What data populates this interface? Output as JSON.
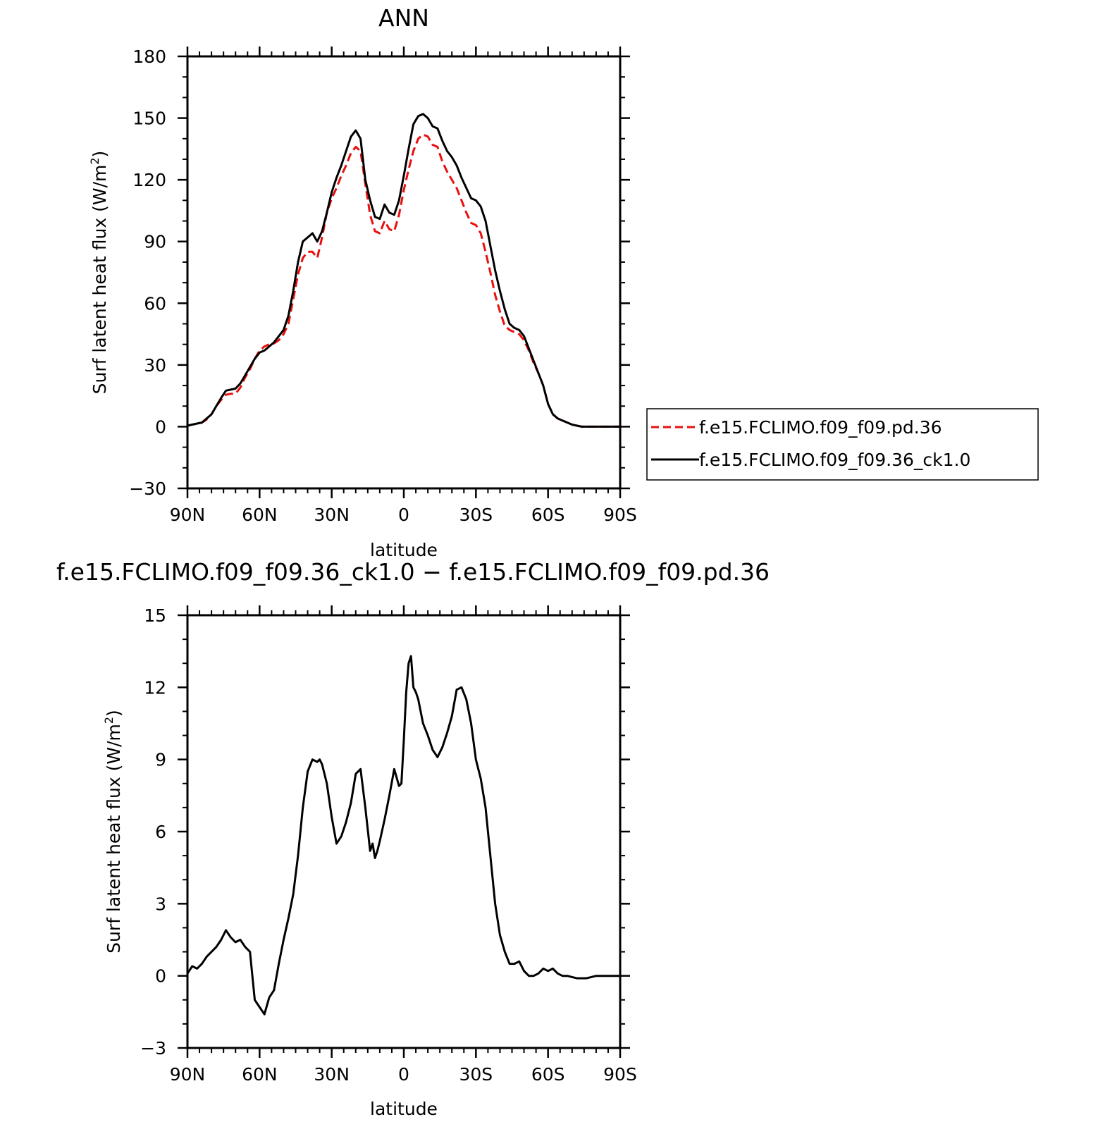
{
  "chart_data": [
    {
      "type": "line",
      "title": "ANN",
      "xlabel": "latitude",
      "ylabel": "Surf latent heat flux (W/m2)",
      "ylabel_parts": {
        "main": "Surf latent heat flux (W/m",
        "sup": "2",
        "end": ")"
      },
      "xlim": [
        90,
        -90
      ],
      "ylim": [
        -30,
        180
      ],
      "xticks": [
        {
          "value": 90,
          "label": "90N"
        },
        {
          "value": 60,
          "label": "60N"
        },
        {
          "value": 30,
          "label": "30N"
        },
        {
          "value": 0,
          "label": "0"
        },
        {
          "value": -30,
          "label": "30S"
        },
        {
          "value": -60,
          "label": "60S"
        },
        {
          "value": -90,
          "label": "90S"
        }
      ],
      "yticks": [
        {
          "value": -30,
          "label": "−30"
        },
        {
          "value": 0,
          "label": "0"
        },
        {
          "value": 30,
          "label": "30"
        },
        {
          "value": 60,
          "label": "60"
        },
        {
          "value": 90,
          "label": "90"
        },
        {
          "value": 120,
          "label": "120"
        },
        {
          "value": 150,
          "label": "150"
        },
        {
          "value": 180,
          "label": "180"
        }
      ],
      "legend_position": "right",
      "series": [
        {
          "name": "f.e15.FCLIMO.f09_f09.pd.36",
          "color": "#e8100e",
          "dash": "dashed",
          "x": [
            90,
            86,
            84,
            82,
            80,
            78,
            76,
            74,
            72,
            70,
            68,
            66,
            64,
            62,
            60,
            58,
            56,
            54,
            52,
            50,
            48,
            46,
            44,
            42,
            40,
            38,
            36,
            34,
            32,
            30,
            28,
            26,
            24,
            22,
            20,
            18,
            16,
            14,
            12,
            10,
            8,
            6,
            4,
            2,
            0,
            -2,
            -4,
            -6,
            -8,
            -10,
            -12,
            -14,
            -16,
            -18,
            -20,
            -22,
            -24,
            -26,
            -28,
            -30,
            -32,
            -34,
            -36,
            -38,
            -40,
            -42,
            -44,
            -46,
            -48,
            -50,
            -52,
            -54,
            -56,
            -58,
            -60,
            -62,
            -64,
            -66,
            -68,
            -70,
            -72,
            -74,
            -76,
            -78,
            -80,
            -82,
            -84,
            -86,
            -90
          ],
          "y": [
            0.5,
            1.5,
            2,
            3.5,
            6,
            10,
            13,
            15.5,
            16,
            16,
            19,
            24,
            28,
            33,
            37,
            39,
            40,
            40.5,
            42,
            45,
            50,
            62,
            74,
            82,
            85,
            85,
            82,
            92,
            104,
            111,
            116,
            122,
            127,
            133,
            136,
            134,
            118,
            103,
            95,
            94,
            100,
            96,
            95,
            103,
            115,
            125,
            134,
            140,
            142,
            141,
            137,
            136,
            129,
            124,
            120,
            116,
            110,
            104,
            99,
            98,
            94,
            85,
            75,
            64,
            56,
            49,
            47,
            46,
            45,
            42,
            37,
            31,
            26,
            20,
            11,
            6,
            4,
            3,
            2,
            1,
            0.5,
            0,
            0,
            0,
            0,
            0,
            0,
            0,
            0
          ]
        },
        {
          "name": "f.e15.FCLIMO.f09_f09.36_ck1.0",
          "color": "#000000",
          "dash": "solid",
          "x": [
            90,
            86,
            84,
            82,
            80,
            78,
            76,
            74,
            72,
            70,
            68,
            66,
            64,
            62,
            60,
            58,
            56,
            54,
            52,
            50,
            48,
            46,
            44,
            42,
            40,
            38,
            36,
            34,
            32,
            30,
            28,
            26,
            24,
            22,
            20,
            18,
            16,
            14,
            12,
            10,
            8,
            6,
            4,
            2,
            0,
            -2,
            -4,
            -6,
            -8,
            -10,
            -12,
            -14,
            -16,
            -18,
            -20,
            -22,
            -24,
            -26,
            -28,
            -30,
            -32,
            -34,
            -36,
            -38,
            -40,
            -42,
            -44,
            -46,
            -48,
            -50,
            -52,
            -54,
            -56,
            -58,
            -60,
            -62,
            -64,
            -66,
            -68,
            -70,
            -72,
            -74,
            -76,
            -78,
            -80,
            -82,
            -84,
            -86,
            -90
          ],
          "y": [
            0.5,
            1.5,
            2,
            4,
            6,
            10,
            14,
            17.5,
            18,
            18.5,
            21,
            25,
            29,
            33,
            36,
            37,
            39,
            41,
            44,
            47,
            54,
            66,
            80,
            90,
            92,
            94,
            90,
            95,
            104,
            114,
            121,
            127,
            134,
            141,
            144,
            140,
            120,
            110,
            102,
            101,
            108,
            104,
            103,
            110,
            122,
            135,
            147,
            151,
            152,
            150,
            146,
            145,
            139,
            134,
            131,
            127,
            121,
            116,
            111,
            110,
            107,
            100,
            88,
            76,
            66,
            57,
            50,
            48,
            47,
            44,
            38,
            32,
            26,
            20,
            11,
            6,
            4,
            3,
            2,
            1,
            0.5,
            0,
            0,
            0,
            0,
            0,
            0,
            0,
            0
          ]
        }
      ]
    },
    {
      "type": "line",
      "title": "f.e15.FCLIMO.f09_f09.36_ck1.0 − f.e15.FCLIMO.f09_f09.pd.36",
      "xlabel": "latitude",
      "ylabel": "Surf latent heat flux (W/m2)",
      "ylabel_parts": {
        "main": "Surf latent heat flux (W/m",
        "sup": "2",
        "end": ")"
      },
      "xlim": [
        90,
        -90
      ],
      "ylim": [
        -3,
        15
      ],
      "xticks": [
        {
          "value": 90,
          "label": "90N"
        },
        {
          "value": 60,
          "label": "60N"
        },
        {
          "value": 30,
          "label": "30N"
        },
        {
          "value": 0,
          "label": "0"
        },
        {
          "value": -30,
          "label": "30S"
        },
        {
          "value": -60,
          "label": "60S"
        },
        {
          "value": -90,
          "label": "90S"
        }
      ],
      "yticks": [
        {
          "value": -3,
          "label": "−3"
        },
        {
          "value": 0,
          "label": "0"
        },
        {
          "value": 3,
          "label": "3"
        },
        {
          "value": 6,
          "label": "6"
        },
        {
          "value": 9,
          "label": "9"
        },
        {
          "value": 12,
          "label": "12"
        },
        {
          "value": 15,
          "label": "15"
        }
      ],
      "series": [
        {
          "color": "#000000",
          "dash": "solid",
          "x": [
            90,
            88,
            86,
            84,
            82,
            80,
            78,
            76,
            74,
            72,
            70,
            68,
            66,
            64,
            62,
            60,
            58,
            56,
            54,
            52,
            50,
            48,
            46,
            44,
            42,
            40,
            38,
            36,
            35,
            34,
            32,
            30,
            28,
            26,
            24,
            22,
            20,
            18,
            16,
            14,
            13,
            12,
            11,
            10,
            8,
            6,
            4,
            2,
            1,
            0,
            -1,
            -2,
            -3,
            -4,
            -5,
            -6,
            -8,
            -10,
            -12,
            -14,
            -16,
            -18,
            -20,
            -22,
            -24,
            -26,
            -28,
            -30,
            -32,
            -34,
            -36,
            -38,
            -40,
            -42,
            -44,
            -46,
            -48,
            -50,
            -52,
            -54,
            -56,
            -58,
            -60,
            -62,
            -64,
            -66,
            -68,
            -70,
            -72,
            -74,
            -76,
            -78,
            -80,
            -82,
            -84,
            -86,
            -88,
            -90
          ],
          "y": [
            0.1,
            0.4,
            0.3,
            0.5,
            0.8,
            1.0,
            1.2,
            1.5,
            1.9,
            1.6,
            1.4,
            1.5,
            1.2,
            1.0,
            -1.0,
            -1.3,
            -1.6,
            -0.9,
            -0.6,
            0.5,
            1.5,
            2.4,
            3.4,
            5.0,
            7.0,
            8.5,
            9.0,
            8.9,
            9.0,
            8.8,
            8.0,
            6.6,
            5.5,
            5.8,
            6.4,
            7.2,
            8.4,
            8.6,
            7.0,
            5.2,
            5.5,
            4.9,
            5.2,
            5.6,
            6.5,
            7.5,
            8.6,
            7.9,
            8.0,
            9.8,
            11.8,
            13.0,
            13.3,
            12.0,
            11.8,
            11.5,
            10.5,
            10.0,
            9.4,
            9.1,
            9.5,
            10.1,
            10.8,
            11.9,
            12.0,
            11.5,
            10.5,
            9.0,
            8.2,
            7.0,
            5.0,
            3.0,
            1.7,
            1.0,
            0.5,
            0.5,
            0.6,
            0.2,
            0.0,
            0.0,
            0.1,
            0.3,
            0.2,
            0.3,
            0.1,
            0.0,
            0.0,
            -0.05,
            -0.1,
            -0.1,
            -0.1,
            -0.05,
            0.0,
            0.0,
            0.0,
            0.0,
            0.0,
            0.0
          ]
        }
      ]
    }
  ]
}
